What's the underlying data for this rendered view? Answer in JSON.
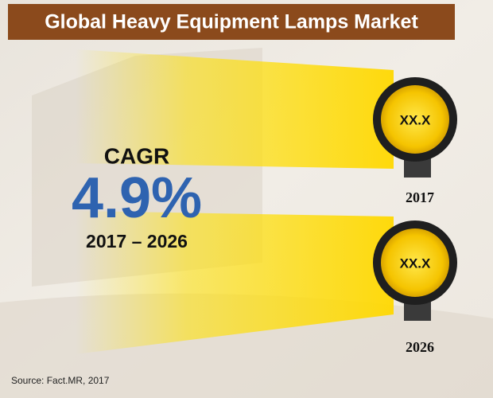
{
  "header": {
    "title": "Global Heavy Equipment Lamps Market"
  },
  "cagr": {
    "label": "CAGR",
    "value": "4.9%",
    "period": "2017 – 2026"
  },
  "lamps": [
    {
      "value": "XX.X",
      "year": "2017"
    },
    {
      "value": "XX.X",
      "year": "2026"
    }
  ],
  "source": "Source: Fact.MR, 2017"
}
